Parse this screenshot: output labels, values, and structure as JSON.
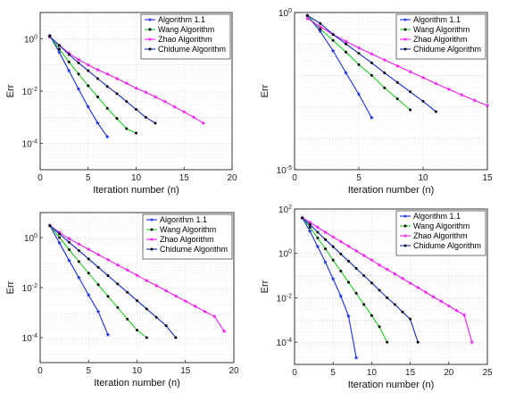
{
  "chart_data": [
    {
      "type": "line",
      "xlabel": "Iteration number (n)",
      "ylabel": "Err",
      "xlim": [
        0,
        20
      ],
      "xticks": [
        "0",
        "5",
        "10",
        "15",
        "20"
      ],
      "yscale": "log",
      "ylim": [
        1e-05,
        10
      ],
      "yticks": [
        {
          "v": 1,
          "label": "10^0"
        },
        {
          "v": 0.01,
          "label": "10^-2"
        },
        {
          "v": 0.0001,
          "label": "10^-4"
        }
      ],
      "grid": true,
      "legend": "top-right",
      "series": [
        {
          "name": "Algorithm 1.1",
          "color": "#1a2ee8",
          "marker": "star",
          "x": [
            1,
            2,
            3,
            4,
            5,
            6,
            7
          ],
          "y": [
            1.3,
            0.3,
            0.06,
            0.012,
            0.0025,
            0.0006,
            0.00018
          ]
        },
        {
          "name": "Wang Algorithm",
          "color": "#1ecf1e",
          "marker": "dot",
          "x": [
            1,
            2,
            3,
            4,
            5,
            6,
            7,
            8,
            9,
            10
          ],
          "y": [
            1.3,
            0.4,
            0.13,
            0.045,
            0.016,
            0.006,
            0.0022,
            0.0009,
            0.00037,
            0.00025
          ]
        },
        {
          "name": "Zhao Algorithm",
          "color": "#f01af0",
          "marker": "star",
          "x": [
            1,
            2,
            3,
            4,
            5,
            6,
            7,
            8,
            9,
            10,
            11,
            12,
            13,
            14,
            15,
            16,
            17
          ],
          "y": [
            1.2,
            0.55,
            0.28,
            0.16,
            0.1,
            0.065,
            0.045,
            0.03,
            0.02,
            0.013,
            0.009,
            0.006,
            0.004,
            0.0025,
            0.0016,
            0.001,
            0.0006
          ]
        },
        {
          "name": "Chidume Algorithm",
          "color": "#1428c8",
          "marker": "dot",
          "x": [
            1,
            2,
            3,
            4,
            5,
            6,
            7,
            8,
            9,
            10,
            11,
            12
          ],
          "y": [
            1.2,
            0.55,
            0.25,
            0.12,
            0.06,
            0.03,
            0.015,
            0.008,
            0.004,
            0.002,
            0.001,
            0.0006
          ]
        }
      ]
    },
    {
      "type": "line",
      "xlabel": "Iteration number (n)",
      "ylabel": "Err",
      "xlim": [
        0,
        15
      ],
      "xticks": [
        "0",
        "5",
        "10",
        "15"
      ],
      "yscale": "log",
      "ylim": [
        1e-05,
        1
      ],
      "yticks": [
        {
          "v": 1,
          "label": "10^0"
        },
        {
          "v": 1e-05,
          "label": "10^-5"
        }
      ],
      "grid": true,
      "legend": "top-right",
      "series": [
        {
          "name": "Algorithm 1.1",
          "color": "#1a2ee8",
          "marker": "star",
          "x": [
            1,
            2,
            3,
            4,
            5,
            6
          ],
          "y": [
            0.8,
            0.25,
            0.06,
            0.012,
            0.0025,
            0.00045
          ]
        },
        {
          "name": "Wang Algorithm",
          "color": "#1ecf1e",
          "marker": "dot",
          "x": [
            1,
            2,
            3,
            4,
            5,
            6,
            7,
            8,
            9
          ],
          "y": [
            0.8,
            0.3,
            0.13,
            0.055,
            0.022,
            0.01,
            0.004,
            0.0018,
            0.0008
          ]
        },
        {
          "name": "Zhao Algorithm",
          "color": "#f01af0",
          "marker": "star",
          "x": [
            1,
            2,
            3,
            4,
            5,
            6,
            7,
            8,
            9,
            10,
            11,
            12,
            13,
            14,
            15
          ],
          "y": [
            0.65,
            0.35,
            0.2,
            0.12,
            0.075,
            0.048,
            0.031,
            0.02,
            0.013,
            0.0085,
            0.0055,
            0.0036,
            0.0024,
            0.0016,
            0.0011
          ]
        },
        {
          "name": "Chidume Algorithm",
          "color": "#1428c8",
          "marker": "dot",
          "x": [
            1,
            2,
            3,
            4,
            5,
            6,
            7,
            8,
            9,
            10,
            11
          ],
          "y": [
            0.8,
            0.45,
            0.2,
            0.1,
            0.05,
            0.025,
            0.012,
            0.006,
            0.003,
            0.0015,
            0.0007
          ]
        }
      ]
    },
    {
      "type": "line",
      "xlabel": "Iteration number (n)",
      "ylabel": "Err",
      "xlim": [
        0,
        20
      ],
      "xticks": [
        "0",
        "5",
        "10",
        "15",
        "20"
      ],
      "yscale": "log",
      "ylim": [
        1e-05,
        10
      ],
      "yticks": [
        {
          "v": 1,
          "label": "10^0"
        },
        {
          "v": 0.01,
          "label": "10^-2"
        },
        {
          "v": 0.0001,
          "label": "10^-4"
        }
      ],
      "grid": true,
      "legend": "top-right",
      "series": [
        {
          "name": "Algorithm 1.1",
          "color": "#1a2ee8",
          "marker": "star",
          "x": [
            1,
            2,
            3,
            4,
            5,
            6,
            7
          ],
          "y": [
            3,
            0.6,
            0.12,
            0.025,
            0.005,
            0.0011,
            0.00013
          ]
        },
        {
          "name": "Wang Algorithm",
          "color": "#1ecf1e",
          "marker": "dot",
          "x": [
            1,
            2,
            3,
            4,
            5,
            6,
            7,
            8,
            9,
            10,
            11
          ],
          "y": [
            3,
            1,
            0.33,
            0.11,
            0.038,
            0.013,
            0.0045,
            0.0016,
            0.00055,
            0.0002,
            0.0001
          ]
        },
        {
          "name": "Zhao Algorithm",
          "color": "#f01af0",
          "marker": "star",
          "x": [
            1,
            2,
            3,
            4,
            5,
            6,
            7,
            8,
            9,
            10,
            11,
            12,
            13,
            14,
            15,
            16,
            17,
            18,
            19
          ],
          "y": [
            3,
            1.6,
            0.9,
            0.55,
            0.34,
            0.21,
            0.13,
            0.08,
            0.05,
            0.031,
            0.019,
            0.012,
            0.0075,
            0.0046,
            0.0029,
            0.0018,
            0.0011,
            0.0007,
            0.00018
          ]
        },
        {
          "name": "Chidume Algorithm",
          "color": "#1428c8",
          "marker": "dot",
          "x": [
            1,
            2,
            3,
            4,
            5,
            6,
            7,
            8,
            9,
            10,
            11,
            12,
            13,
            14
          ],
          "y": [
            3,
            1.4,
            0.65,
            0.3,
            0.14,
            0.065,
            0.03,
            0.014,
            0.0065,
            0.003,
            0.0014,
            0.00065,
            0.0003,
            0.0001
          ]
        }
      ]
    },
    {
      "type": "line",
      "xlabel": "Iteration number (n)",
      "ylabel": "Err",
      "xlim": [
        0,
        25
      ],
      "xticks": [
        "0",
        "5",
        "10",
        "15",
        "20",
        "25"
      ],
      "yscale": "log",
      "ylim": [
        1e-05,
        100
      ],
      "yticks": [
        {
          "v": 100,
          "label": "10^2"
        },
        {
          "v": 1,
          "label": "10^0"
        },
        {
          "v": 0.01,
          "label": "10^-2"
        },
        {
          "v": 0.0001,
          "label": "10^-4"
        }
      ],
      "grid": true,
      "legend": "top-right",
      "series": [
        {
          "name": "Algorithm 1.1",
          "color": "#1a2ee8",
          "marker": "star",
          "x": [
            1,
            2,
            3,
            4,
            5,
            6,
            7,
            8
          ],
          "y": [
            40,
            10,
            2,
            0.4,
            0.07,
            0.012,
            0.0015,
            2e-05
          ]
        },
        {
          "name": "Wang Algorithm",
          "color": "#1ecf1e",
          "marker": "dot",
          "x": [
            1,
            2,
            3,
            4,
            5,
            6,
            7,
            8,
            9,
            10,
            11,
            12
          ],
          "y": [
            40,
            15,
            5,
            1.6,
            0.5,
            0.16,
            0.05,
            0.016,
            0.005,
            0.0016,
            0.0005,
            0.0001
          ]
        },
        {
          "name": "Zhao Algorithm",
          "color": "#f01af0",
          "marker": "star",
          "x": [
            1,
            2,
            3,
            4,
            5,
            6,
            7,
            8,
            9,
            10,
            11,
            12,
            13,
            14,
            15,
            16,
            17,
            18,
            19,
            20,
            21,
            22,
            23
          ],
          "y": [
            40,
            25,
            15,
            9,
            5.5,
            3.4,
            2.1,
            1.3,
            0.8,
            0.5,
            0.3,
            0.19,
            0.12,
            0.075,
            0.046,
            0.029,
            0.018,
            0.011,
            0.007,
            0.0043,
            0.0027,
            0.0017,
            0.0001
          ]
        },
        {
          "name": "Chidume Algorithm",
          "color": "#1428c8",
          "marker": "dot",
          "x": [
            1,
            2,
            3,
            4,
            5,
            6,
            7,
            8,
            9,
            10,
            11,
            12,
            13,
            14,
            15,
            16
          ],
          "y": [
            40,
            20,
            9,
            4.2,
            2,
            0.95,
            0.45,
            0.21,
            0.1,
            0.047,
            0.022,
            0.01,
            0.005,
            0.0023,
            0.0011,
            0.0001
          ]
        }
      ]
    }
  ]
}
